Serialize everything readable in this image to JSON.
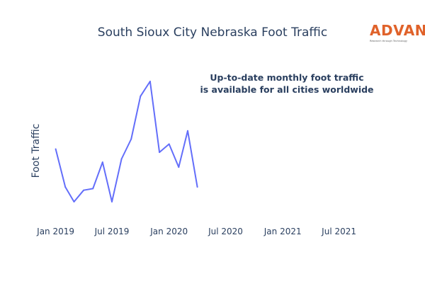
{
  "logo": {
    "name": "ADVAN",
    "tagline": "Research through Technology",
    "color": "#e0622a"
  },
  "chart_data": {
    "type": "line",
    "title": "South Sioux City Nebraska Foot Traffic",
    "xlabel": "",
    "ylabel": "Foot Traffic",
    "y_tick_labels_shown": false,
    "grid": false,
    "legend": "none",
    "xlim": [
      "2018-12-01",
      "2021-10-01"
    ],
    "ylim": [
      0,
      100
    ],
    "x_tick_labels": [
      "Jan 2019",
      "Jul 2019",
      "Jan 2020",
      "Jul 2020",
      "Jan 2021",
      "Jul 2021"
    ],
    "x_tick_dates": [
      "2019-01-01",
      "2019-07-01",
      "2020-01-01",
      "2020-07-01",
      "2021-01-01",
      "2021-07-01"
    ],
    "annotation": [
      "Up-to-date monthly foot traffic",
      "is available for all cities worldwide"
    ],
    "series": [
      {
        "color": "#636efa",
        "x": [
          "2019-01-01",
          "2019-02-01",
          "2019-03-01",
          "2019-04-01",
          "2019-05-01",
          "2019-06-01",
          "2019-07-01",
          "2019-08-01",
          "2019-09-01",
          "2019-10-01",
          "2019-11-01",
          "2019-12-01",
          "2020-01-01",
          "2020-02-01",
          "2020-03-01",
          "2020-04-01"
        ],
        "y": [
          44,
          21,
          12,
          19,
          20,
          36,
          12,
          38,
          50,
          76,
          85,
          42,
          47,
          33,
          55,
          21
        ]
      }
    ]
  }
}
